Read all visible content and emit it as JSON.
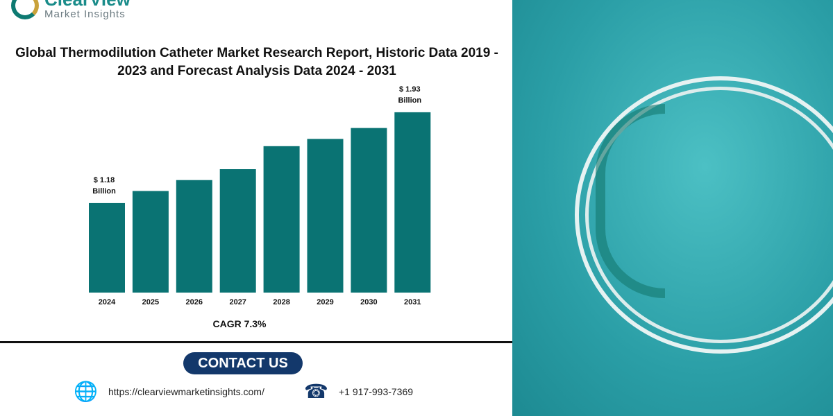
{
  "logo": {
    "name": "ClearView",
    "tagline": "Market Insights"
  },
  "title": "Global Thermodilution Catheter Market Research Report, Historic Data 2019 - 2023 and Forecast Analysis Data 2024 - 2031",
  "chart_data": {
    "type": "bar",
    "categories": [
      "2024",
      "2025",
      "2026",
      "2027",
      "2028",
      "2029",
      "2030",
      "2031"
    ],
    "values": [
      1.18,
      1.28,
      1.37,
      1.46,
      1.65,
      1.71,
      1.8,
      1.93
    ],
    "data_labels": {
      "0": "$ 1.18 Billion",
      "7": "$ 1.93 Billion"
    },
    "unit": "USD Billion",
    "color": "#0a7373",
    "grid": false,
    "annotation": "CAGR 7.3%"
  },
  "contact": {
    "label": "CONTACT US",
    "website": "https://clearviewmarketinsights.com/",
    "phone": "+1 917-993-7369"
  },
  "colors": {
    "bar": "#0a7373",
    "contact_bg": "#13386b",
    "brand": "#1a8c8a"
  }
}
